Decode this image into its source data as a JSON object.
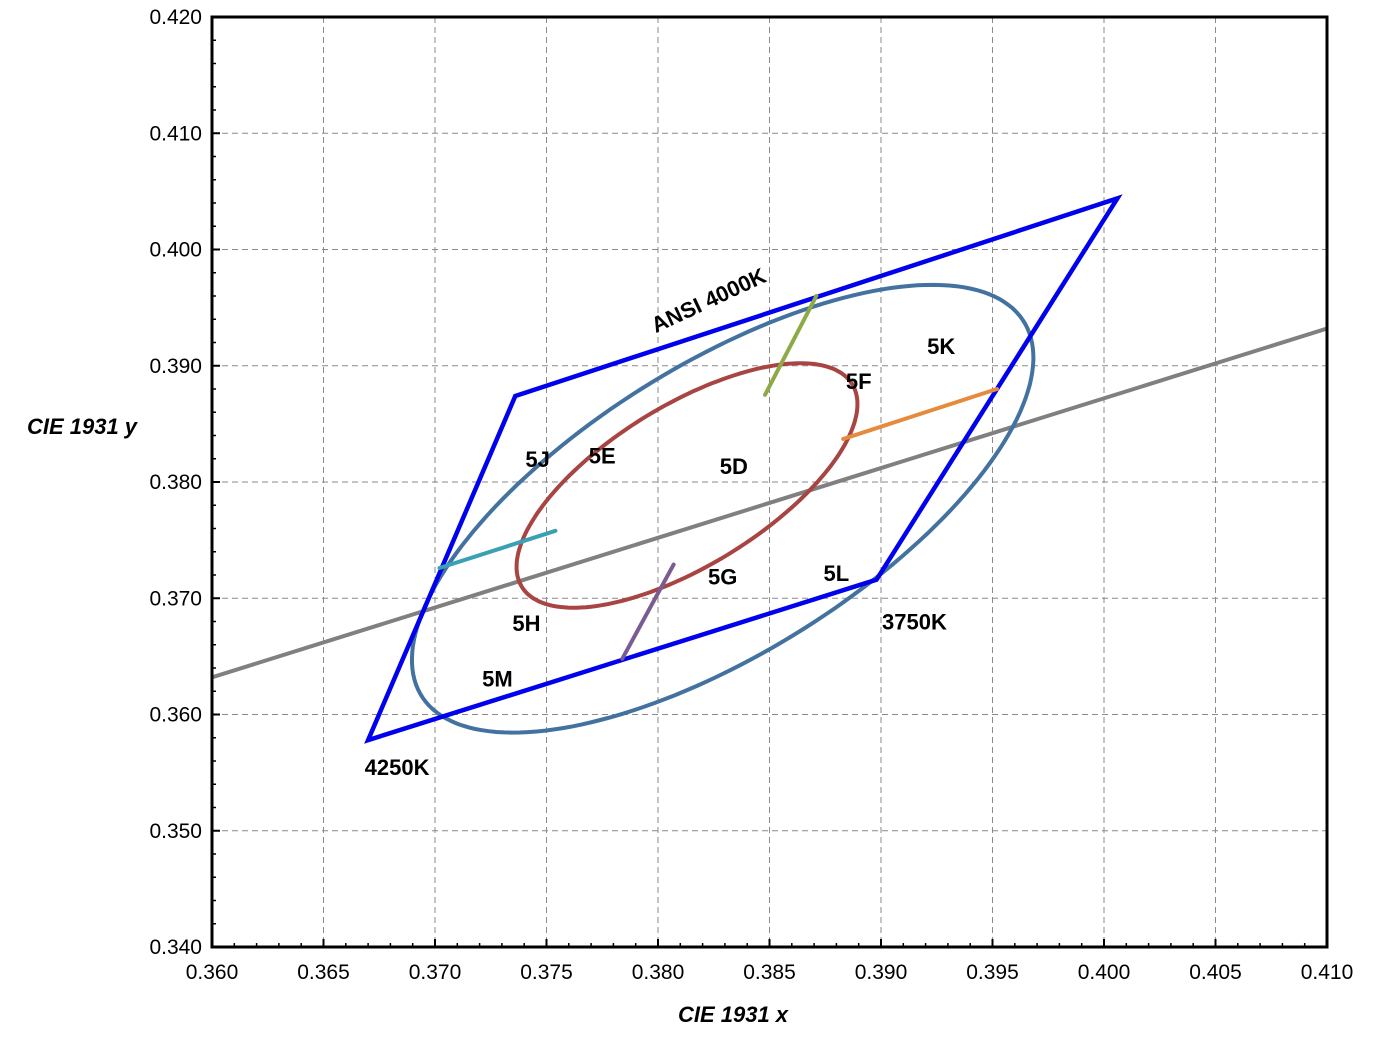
{
  "chart_data": {
    "type": "scatter",
    "title": "",
    "xlabel": "CIE 1931 x",
    "ylabel": "CIE 1931 y",
    "xlim": [
      0.36,
      0.41
    ],
    "ylim": [
      0.34,
      0.42
    ],
    "x_ticks": [
      "0.360",
      "0.365",
      "0.370",
      "0.375",
      "0.380",
      "0.385",
      "0.390",
      "0.395",
      "0.400",
      "0.405",
      "0.410"
    ],
    "y_ticks": [
      "0.340",
      "0.350",
      "0.360",
      "0.370",
      "0.380",
      "0.390",
      "0.400",
      "0.410",
      "0.420"
    ],
    "grid": true,
    "colors": {
      "quadrangle": "#0000ee",
      "outer_ellipse": "#4472a0",
      "inner_ellipse": "#a84442",
      "planckian_line": "#808080",
      "divider_top": "#8eaa46",
      "divider_right": "#e68a3c",
      "divider_left": "#3aa0b4",
      "divider_bottom": "#7a5c92"
    },
    "quadrangle": {
      "points": [
        [
          0.3736,
          0.3874
        ],
        [
          0.4006,
          0.4044
        ],
        [
          0.3898,
          0.3716
        ],
        [
          0.367,
          0.3578
        ]
      ]
    },
    "planckian_line": {
      "points": [
        [
          0.36,
          0.3632
        ],
        [
          0.41,
          0.3932
        ]
      ]
    },
    "outer_ellipse": {
      "cx": 0.3829,
      "cy": 0.3777,
      "a": 0.022,
      "b": 0.009,
      "angle_deg": 58.0
    },
    "inner_ellipse": {
      "cx": 0.3813,
      "cy": 0.3797,
      "a": 0.012,
      "b": 0.005,
      "angle_deg": 58.0
    },
    "dividers": [
      {
        "name": "top",
        "points": [
          [
            0.3848,
            0.3875
          ],
          [
            0.3871,
            0.396
          ]
        ]
      },
      {
        "name": "right",
        "points": [
          [
            0.3883,
            0.3837
          ],
          [
            0.3952,
            0.388
          ]
        ]
      },
      {
        "name": "left",
        "points": [
          [
            0.3702,
            0.3726
          ],
          [
            0.3754,
            0.3758
          ]
        ]
      },
      {
        "name": "bottom",
        "points": [
          [
            0.3807,
            0.3729
          ],
          [
            0.3784,
            0.3648
          ]
        ]
      }
    ],
    "annotations": [
      {
        "text": "ANSI 4000K",
        "x": 0.3823,
        "y": 0.3955,
        "rotate": -25
      },
      {
        "text": "5K",
        "x": 0.3927,
        "y": 0.3915
      },
      {
        "text": "5F",
        "x": 0.389,
        "y": 0.3885
      },
      {
        "text": "5J",
        "x": 0.3746,
        "y": 0.3818
      },
      {
        "text": "5E",
        "x": 0.3775,
        "y": 0.3821
      },
      {
        "text": "5D",
        "x": 0.3834,
        "y": 0.3812
      },
      {
        "text": "5G",
        "x": 0.3829,
        "y": 0.3717
      },
      {
        "text": "5L",
        "x": 0.388,
        "y": 0.372
      },
      {
        "text": "3750K",
        "x": 0.3915,
        "y": 0.3678
      },
      {
        "text": "5H",
        "x": 0.3741,
        "y": 0.3677
      },
      {
        "text": "5M",
        "x": 0.3728,
        "y": 0.3629
      },
      {
        "text": "4250K",
        "x": 0.3683,
        "y": 0.3553
      }
    ]
  }
}
